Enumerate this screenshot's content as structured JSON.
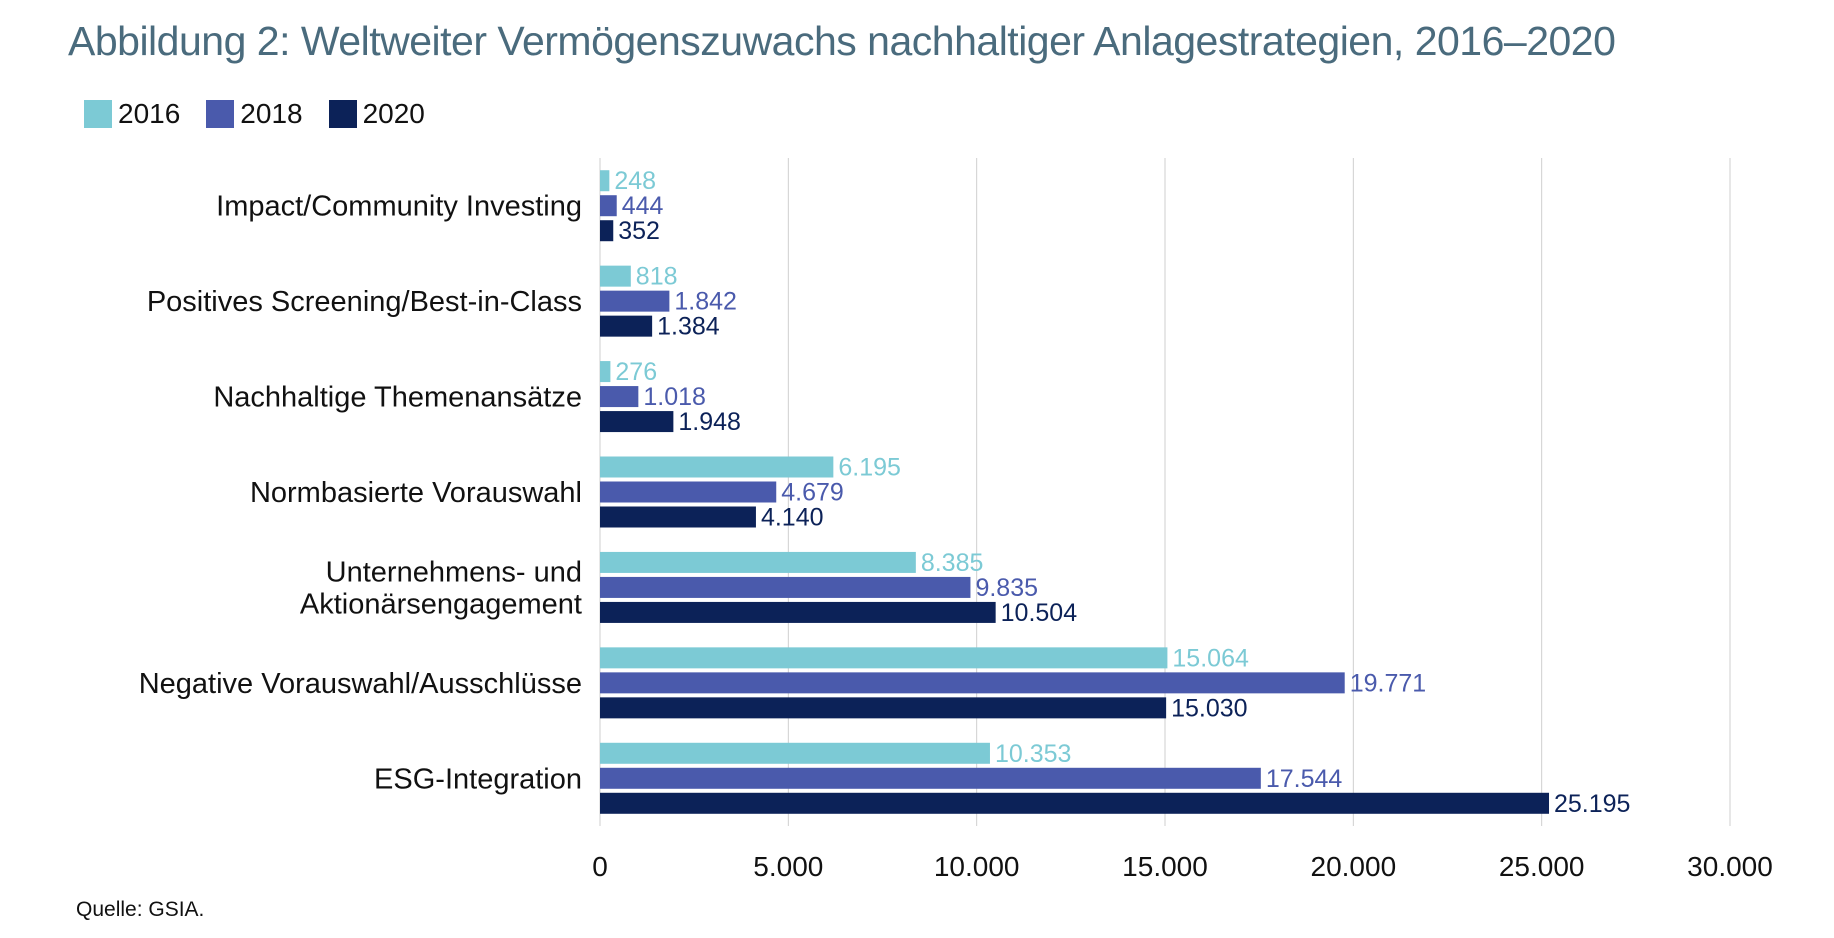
{
  "title": "Abbildung 2: Weltweiter Vermögenszuwachs nachhaltiger Anlagestrategien, 2016–2020",
  "source": "Quelle: GSIA.",
  "colors": {
    "2016": "#7ccad5",
    "2018": "#4a5aac",
    "2020": "#0c2258"
  },
  "chart_data": {
    "type": "bar",
    "orientation": "horizontal",
    "categories": [
      [
        "Impact/Community Investing"
      ],
      [
        "Positives Screening/Best-in-Class"
      ],
      [
        "Nachhaltige Themenansätze"
      ],
      [
        "Normbasierte Vorauswahl"
      ],
      [
        "Unternehmens- und",
        "Aktionärsengagement"
      ],
      [
        "Negative Vorauswahl/Ausschlüsse"
      ],
      [
        "ESG-Integration"
      ]
    ],
    "series": [
      {
        "name": "2016",
        "values": [
          248,
          818,
          276,
          6195,
          8385,
          15064,
          10353
        ],
        "labels": [
          "248",
          "818",
          "276",
          "6.195",
          "8.385",
          "15.064",
          "10.353"
        ]
      },
      {
        "name": "2018",
        "values": [
          444,
          1842,
          1018,
          4679,
          9835,
          19771,
          17544
        ],
        "labels": [
          "444",
          "1.842",
          "1.018",
          "4.679",
          "9.835",
          "19.771",
          "17.544"
        ]
      },
      {
        "name": "2020",
        "values": [
          352,
          1384,
          1948,
          4140,
          10504,
          15030,
          25195
        ],
        "labels": [
          "352",
          "1.384",
          "1.948",
          "4.140",
          "10.504",
          "15.030",
          "25.195"
        ]
      }
    ],
    "xlim": [
      0,
      30000
    ],
    "xticks": [
      0,
      5000,
      10000,
      15000,
      20000,
      25000,
      30000
    ],
    "xtick_labels": [
      "0",
      "5.000",
      "10.000",
      "15.000",
      "20.000",
      "25.000",
      "30.000"
    ],
    "grid": true,
    "legend_position": "top-left"
  }
}
